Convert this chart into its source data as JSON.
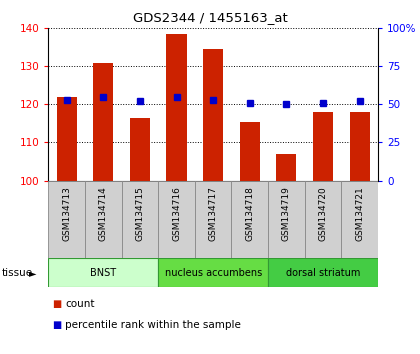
{
  "title": "GDS2344 / 1455163_at",
  "samples": [
    "GSM134713",
    "GSM134714",
    "GSM134715",
    "GSM134716",
    "GSM134717",
    "GSM134718",
    "GSM134719",
    "GSM134720",
    "GSM134721"
  ],
  "counts": [
    122,
    131,
    116.5,
    138.5,
    134.5,
    115.5,
    107,
    118,
    118
  ],
  "percentile_ranks": [
    53,
    55,
    52,
    55,
    53,
    51,
    50,
    51,
    52
  ],
  "ylim_left": [
    100,
    140
  ],
  "ylim_right": [
    0,
    100
  ],
  "yticks_left": [
    100,
    110,
    120,
    130,
    140
  ],
  "yticks_right": [
    0,
    25,
    50,
    75,
    100
  ],
  "ytick_labels_right": [
    "0",
    "25",
    "50",
    "75",
    "100%"
  ],
  "bar_color": "#cc2200",
  "dot_color": "#0000cc",
  "tissue_groups": [
    {
      "label": "BNST",
      "start": 0,
      "end": 3,
      "color": "#ccffcc"
    },
    {
      "label": "nucleus accumbens",
      "start": 3,
      "end": 6,
      "color": "#66dd44"
    },
    {
      "label": "dorsal striatum",
      "start": 6,
      "end": 9,
      "color": "#44cc44"
    }
  ],
  "tissue_label": "tissue",
  "legend_count_label": "count",
  "legend_pct_label": "percentile rank within the sample",
  "bar_width": 0.55,
  "ybase": 100,
  "bg_color": "#ffffff",
  "label_bg": "#d0d0d0"
}
